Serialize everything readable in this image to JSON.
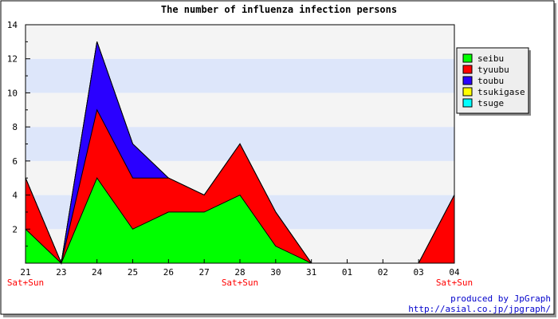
{
  "chart_data": {
    "type": "area",
    "stacked": true,
    "title": "The number of influenza infection persons",
    "x": [
      "21",
      "23",
      "24",
      "25",
      "26",
      "27",
      "28",
      "30",
      "31",
      "01",
      "02",
      "03",
      "04"
    ],
    "x_sublabels": [
      "Sat+Sun",
      "",
      "",
      "",
      "",
      "",
      "Sat+Sun",
      "",
      "",
      "",
      "",
      "",
      "Sat+Sun"
    ],
    "ylim": [
      0,
      14
    ],
    "yticks": [
      2,
      4,
      6,
      8,
      10,
      12,
      14
    ],
    "grid": "horizontal alternating bands",
    "legend_position": "top-right",
    "series": [
      {
        "name": "seibu",
        "color": "#00ff00",
        "values": [
          2,
          0,
          5,
          2,
          3,
          3,
          4,
          1,
          0,
          0,
          0,
          0,
          0
        ]
      },
      {
        "name": "tyuubu",
        "color": "#ff0000",
        "values": [
          3,
          0,
          4,
          3,
          2,
          1,
          3,
          2,
          0,
          0,
          0,
          0,
          4
        ]
      },
      {
        "name": "toubu",
        "color": "#2a00ff",
        "values": [
          0,
          0,
          4,
          2,
          0,
          0,
          0,
          0,
          0,
          0,
          0,
          0,
          0
        ]
      },
      {
        "name": "tsukigase",
        "color": "#ffff00",
        "values": [
          0,
          0,
          0,
          0,
          0,
          0,
          0,
          0,
          0,
          0,
          0,
          0,
          0
        ]
      },
      {
        "name": "tsuge",
        "color": "#00ffff",
        "values": [
          0,
          0,
          0,
          0,
          0,
          0,
          0,
          0,
          0,
          0,
          0,
          0,
          0
        ]
      }
    ]
  },
  "footer": {
    "line1": "produced by JpGraph",
    "line2": "http://asial.co.jp/jpgraph/"
  },
  "colors": {
    "band_light": "#f4f4f4",
    "band_blue": "#dde6fa",
    "sublabel": "#ff0000",
    "footer": "#0000cc"
  }
}
